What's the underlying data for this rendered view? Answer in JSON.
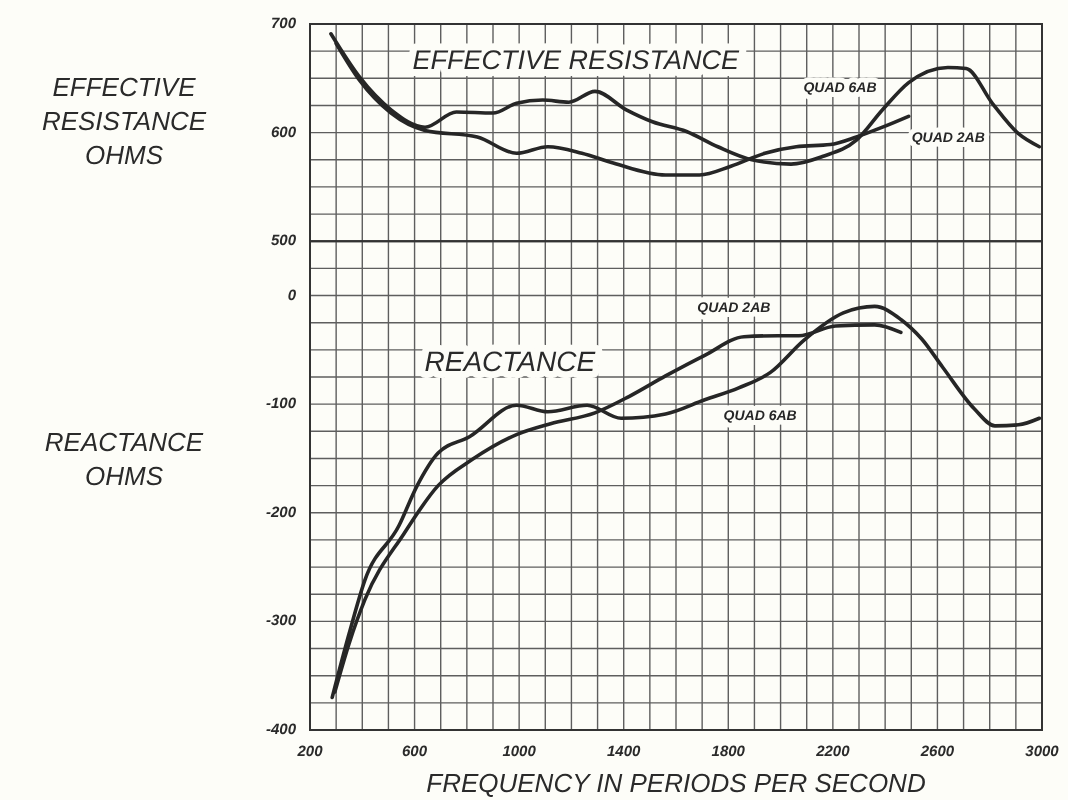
{
  "chart_data": [
    {
      "type": "line",
      "title": "EFFECTIVE RESISTANCE",
      "ylabel": "EFFECTIVE RESISTANCE OHMS",
      "xlim": [
        200,
        3000
      ],
      "ylim": [
        500,
        700
      ],
      "xticks": [
        200,
        {
          "value": 300,
          "label": null
        },
        {
          "value": 400,
          "label": null
        },
        {
          "value": 500,
          "label": null
        },
        600,
        {
          "value": 700,
          "label": null
        },
        {
          "value": 800,
          "label": null
        },
        {
          "value": 900,
          "label": null
        },
        1000,
        {
          "value": 1100,
          "label": null
        },
        {
          "value": 1200,
          "label": null
        },
        {
          "value": 1300,
          "label": null
        },
        1400,
        {
          "value": 1500,
          "label": null
        },
        {
          "value": 1600,
          "label": null
        },
        {
          "value": 1700,
          "label": null
        },
        1800,
        {
          "value": 1900,
          "label": null
        },
        {
          "value": 2000,
          "label": null
        },
        {
          "value": 2100,
          "label": null
        },
        2200,
        {
          "value": 2300,
          "label": null
        },
        {
          "value": 2400,
          "label": null
        },
        {
          "value": 2500,
          "label": null
        },
        2600,
        {
          "value": 2700,
          "label": null
        },
        {
          "value": 2800,
          "label": null
        },
        {
          "value": 2900,
          "label": null
        },
        3000
      ],
      "yticks": [
        500,
        {
          "value": 525,
          "label": null
        },
        {
          "value": 550,
          "label": null
        },
        {
          "value": 575,
          "label": null
        },
        600,
        {
          "value": 625,
          "label": null
        },
        {
          "value": 650,
          "label": null
        },
        {
          "value": 675,
          "label": null
        },
        700
      ],
      "tick_labels": "y",
      "grid": true,
      "series": [
        {
          "name": "QUAD 6AB",
          "color": "#262626",
          "x": [
            280,
            390,
            510,
            640,
            760,
            900,
            990,
            1090,
            1190,
            1290,
            1410,
            1510,
            1640,
            1760,
            1890,
            2040,
            2160,
            2290,
            2390,
            2490,
            2640,
            2710,
            2810,
            2910,
            2990
          ],
          "values": [
            691,
            651,
            621,
            605,
            619,
            618,
            627,
            630,
            628,
            638,
            621,
            610,
            601,
            587,
            575,
            571,
            578,
            593,
            621,
            646,
            660,
            659,
            627,
            599,
            587
          ]
        },
        {
          "name": "QUAD 2AB",
          "color": "#262626",
          "x": [
            300,
            390,
            510,
            640,
            840,
            990,
            1110,
            1240,
            1360,
            1560,
            1690,
            1810,
            1940,
            2060,
            2190,
            2290,
            2390,
            2490
          ],
          "values": [
            682,
            648,
            618,
            602,
            596,
            581,
            587,
            581,
            572,
            561,
            561,
            569,
            581,
            587,
            589,
            596,
            605,
            615
          ]
        }
      ]
    },
    {
      "type": "line",
      "title": "REACTANCE",
      "ylabel": "REACTANCE OHMS",
      "xlabel": "FREQUENCY IN PERIODS PER SECOND",
      "xlim": [
        200,
        3000
      ],
      "ylim": [
        -400,
        50
      ],
      "xticks": [
        200,
        {
          "value": 300,
          "label": null
        },
        {
          "value": 400,
          "label": null
        },
        {
          "value": 500,
          "label": null
        },
        600,
        {
          "value": 700,
          "label": null
        },
        {
          "value": 800,
          "label": null
        },
        {
          "value": 900,
          "label": null
        },
        1000,
        {
          "value": 1100,
          "label": null
        },
        {
          "value": 1200,
          "label": null
        },
        {
          "value": 1300,
          "label": null
        },
        1400,
        {
          "value": 1500,
          "label": null
        },
        {
          "value": 1600,
          "label": null
        },
        {
          "value": 1700,
          "label": null
        },
        1800,
        {
          "value": 1900,
          "label": null
        },
        {
          "value": 2000,
          "label": null
        },
        {
          "value": 2100,
          "label": null
        },
        2200,
        {
          "value": 2300,
          "label": null
        },
        {
          "value": 2400,
          "label": null
        },
        {
          "value": 2500,
          "label": null
        },
        2600,
        {
          "value": 2700,
          "label": null
        },
        {
          "value": 2800,
          "label": null
        },
        {
          "value": 2900,
          "label": null
        },
        3000
      ],
      "yticks": [
        -400,
        {
          "value": -375,
          "label": null
        },
        {
          "value": -350,
          "label": null
        },
        {
          "value": -325,
          "label": null
        },
        -300,
        {
          "value": -275,
          "label": null
        },
        {
          "value": -250,
          "label": null
        },
        {
          "value": -225,
          "label": null
        },
        -200,
        {
          "value": -175,
          "label": null
        },
        {
          "value": -150,
          "label": null
        },
        {
          "value": -125,
          "label": null
        },
        -100,
        {
          "value": -75,
          "label": null
        },
        {
          "value": -50,
          "label": null
        },
        {
          "value": -25,
          "label": null
        },
        0,
        {
          "value": 25,
          "label": null
        }
      ],
      "grid": true,
      "series": [
        {
          "name": "QUAD 6AB",
          "color": "#262626",
          "x": [
            285,
            350,
            410,
            540,
            610,
            690,
            810,
            990,
            1110,
            1260,
            1390,
            1560,
            1710,
            1840,
            1960,
            2090,
            2240,
            2360,
            2460,
            2540,
            2620,
            2740,
            2820,
            2910,
            2990
          ],
          "values": [
            -370,
            -311,
            -262,
            -212,
            -175,
            -145,
            -130,
            -101,
            -107,
            -101,
            -113,
            -109,
            -96,
            -85,
            -71,
            -41,
            -16,
            -10,
            -22,
            -40,
            -66,
            -104,
            -120,
            -119,
            -113
          ]
        },
        {
          "name": "QUAD 2AB",
          "color": "#262626",
          "x": [
            295,
            350,
            410,
            560,
            690,
            820,
            990,
            1120,
            1290,
            1420,
            1560,
            1710,
            1860,
            1990,
            2070,
            2210,
            2360,
            2460
          ],
          "values": [
            -365,
            -320,
            -280,
            -219,
            -175,
            -151,
            -128,
            -118,
            -108,
            -93,
            -74,
            -55,
            -38,
            -37,
            -37,
            -28,
            -27,
            -34
          ]
        }
      ]
    }
  ]
}
